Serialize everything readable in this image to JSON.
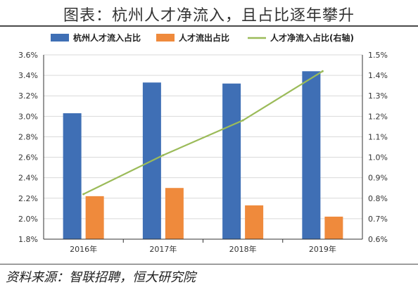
{
  "title": "图表：杭州人才净流入，且占比逐年攀升",
  "source": "资料来源：智联招聘，恒大研究院",
  "colors": {
    "inflow": "#3f6fb5",
    "outflow": "#ef8a3c",
    "net": "#9bbb59",
    "axis": "#333333",
    "grid": "#d9d9d9"
  },
  "chart_data": {
    "type": "bar",
    "categories": [
      "2016年",
      "2017年",
      "2018年",
      "2019年"
    ],
    "series": [
      {
        "name": "杭州人才流入占比",
        "axis": "left",
        "type": "bar",
        "values": [
          3.03,
          3.33,
          3.32,
          3.44
        ]
      },
      {
        "name": "人才流出占比",
        "axis": "left",
        "type": "bar",
        "values": [
          2.22,
          2.3,
          2.13,
          2.02
        ]
      },
      {
        "name": "人才净流入占比(右轴)",
        "axis": "right",
        "type": "line",
        "values": [
          0.82,
          1.01,
          1.18,
          1.42
        ]
      }
    ],
    "y_left": {
      "min": 1.8,
      "max": 3.6,
      "ticks": [
        "1.8%",
        "2.0%",
        "2.2%",
        "2.4%",
        "2.6%",
        "2.8%",
        "3.0%",
        "3.2%",
        "3.4%",
        "3.6%"
      ]
    },
    "y_right": {
      "min": 0.6,
      "max": 1.5,
      "ticks": [
        "0.6%",
        "0.7%",
        "0.8%",
        "0.9%",
        "1.0%",
        "1.1%",
        "1.2%",
        "1.3%",
        "1.4%",
        "1.5%"
      ]
    },
    "legend": "top"
  }
}
